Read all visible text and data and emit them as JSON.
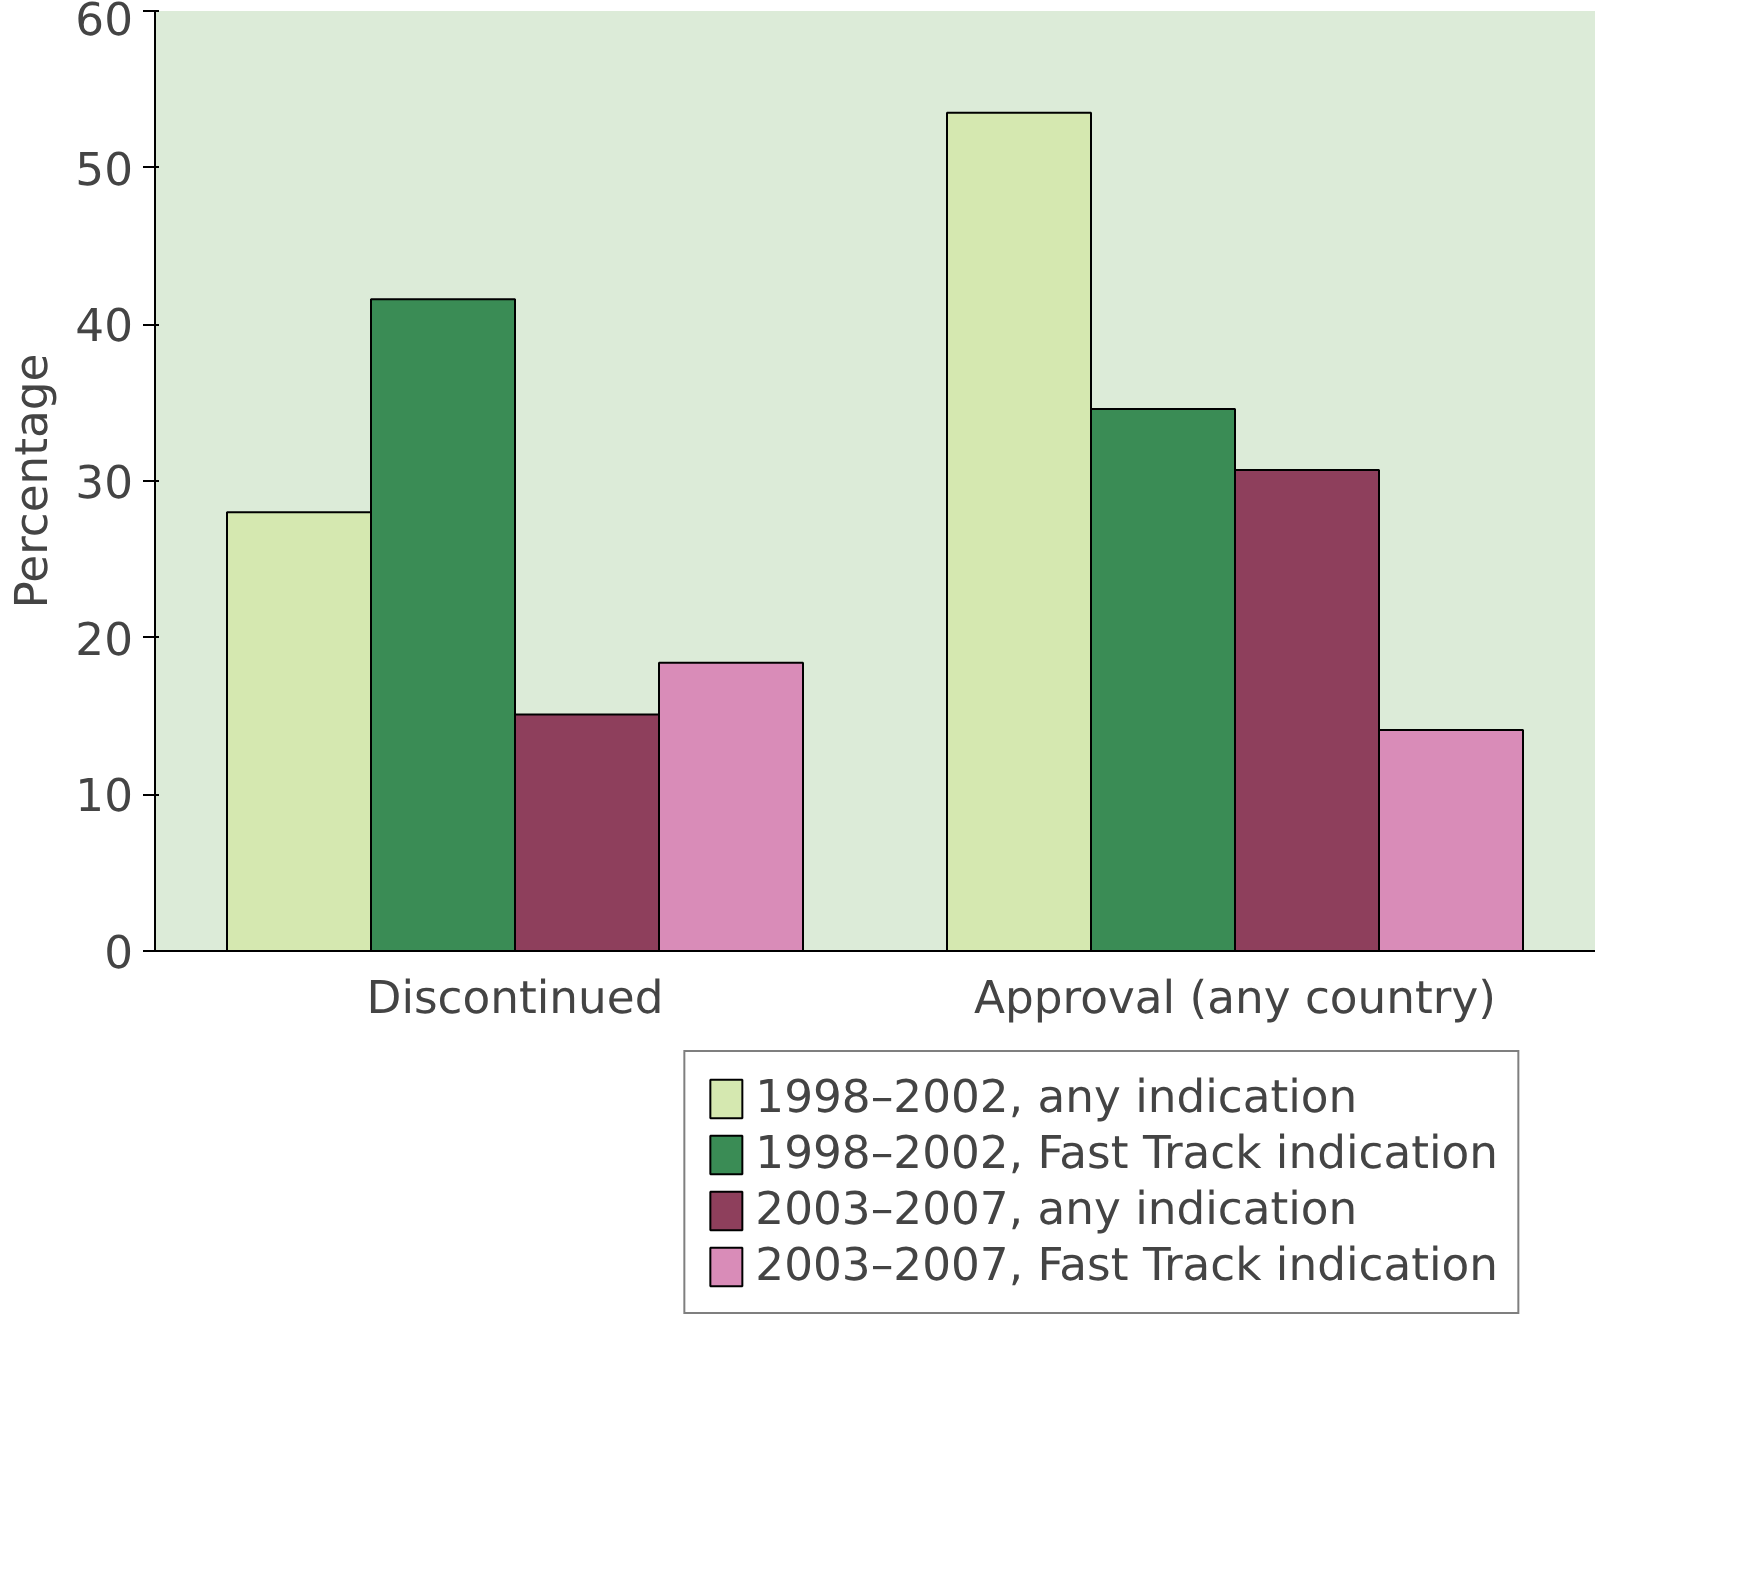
{
  "chart_data": {
    "type": "bar",
    "ylabel": "Percentage",
    "categories": [
      "Discontinued",
      "Approval (any country)"
    ],
    "series": [
      {
        "name": "1998–2002, any indication",
        "color": "#d5e8b0",
        "values": [
          28,
          53.5
        ]
      },
      {
        "name": "1998–2002, Fast Track indication",
        "color": "#3a8c55",
        "values": [
          41.6,
          34.6
        ]
      },
      {
        "name": "2003–2007, any indication",
        "color": "#8e3f5c",
        "values": [
          15.1,
          30.7
        ]
      },
      {
        "name": "2003–2007, Fast Track indication",
        "color": "#d98cb8",
        "values": [
          18.4,
          14.1
        ]
      }
    ],
    "ylim": [
      0,
      60
    ],
    "yticks": [
      0,
      10,
      20,
      30,
      40,
      50,
      60
    ],
    "grid": false,
    "legend": "bottom right"
  }
}
